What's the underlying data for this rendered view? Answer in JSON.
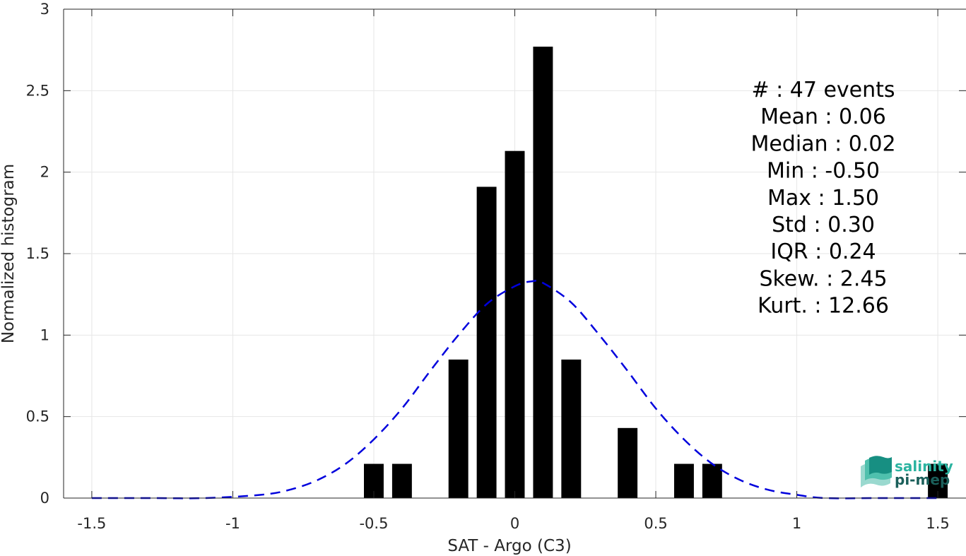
{
  "chart_data": {
    "type": "bar",
    "xlabel": "SAT - Argo (C3)",
    "ylabel": "Normalized histogram",
    "xlim": [
      -1.6,
      1.6
    ],
    "ylim": [
      0,
      3
    ],
    "grid": true,
    "xticks": [
      -1.5,
      -1,
      -0.5,
      0,
      0.5,
      1,
      1.5
    ],
    "xtick_labels": [
      "-1.5",
      "-1",
      "-0.5",
      "0",
      "0.5",
      "1",
      "1.5"
    ],
    "yticks": [
      0,
      0.5,
      1,
      1.5,
      2,
      2.5,
      3
    ],
    "ytick_labels": [
      "0",
      "0.5",
      "1",
      "1.5",
      "2",
      "2.5",
      "3"
    ],
    "bar_width": 0.07,
    "bars": [
      {
        "x": -0.5,
        "y": 0.21
      },
      {
        "x": -0.4,
        "y": 0.21
      },
      {
        "x": -0.2,
        "y": 0.85
      },
      {
        "x": -0.1,
        "y": 1.91
      },
      {
        "x": 0.0,
        "y": 2.13
      },
      {
        "x": 0.1,
        "y": 2.77
      },
      {
        "x": 0.2,
        "y": 0.85
      },
      {
        "x": 0.4,
        "y": 0.43
      },
      {
        "x": 0.6,
        "y": 0.21
      },
      {
        "x": 0.7,
        "y": 0.21
      },
      {
        "x": 1.5,
        "y": 0.21
      }
    ],
    "fit_curve": {
      "style": "dashed",
      "color": "#0000dd",
      "x": [
        -1.5,
        -1.3,
        -1.1,
        -0.9,
        -0.8,
        -0.7,
        -0.6,
        -0.5,
        -0.4,
        -0.3,
        -0.2,
        -0.1,
        0.0,
        0.06,
        0.1,
        0.2,
        0.3,
        0.4,
        0.5,
        0.6,
        0.7,
        0.8,
        0.9,
        1.0,
        1.1,
        1.3,
        1.5
      ],
      "y": [
        0.0,
        0.0,
        0.0,
        0.02,
        0.05,
        0.11,
        0.21,
        0.36,
        0.55,
        0.78,
        1.0,
        1.19,
        1.3,
        1.33,
        1.32,
        1.2,
        1.0,
        0.78,
        0.55,
        0.36,
        0.21,
        0.11,
        0.05,
        0.02,
        0.0,
        0.0,
        0.0
      ]
    },
    "stats": [
      {
        "label": "#  : 47 events"
      },
      {
        "label": "Mean : 0.06"
      },
      {
        "label": "Median : 0.02"
      },
      {
        "label": "Min : -0.50"
      },
      {
        "label": "Max : 1.50"
      },
      {
        "label": "Std : 0.30"
      },
      {
        "label": "IQR : 0.24"
      },
      {
        "label": "Skew. : 2.45"
      },
      {
        "label": "Kurt. : 12.66"
      }
    ],
    "bar_color": "#000000",
    "grid_color": "#e6e6e6",
    "axis_color": "#262626"
  },
  "logo": {
    "line1": "salinity",
    "line2": "pi-mep",
    "color1": "#2ab3a0",
    "color2": "#1a5f5a"
  }
}
